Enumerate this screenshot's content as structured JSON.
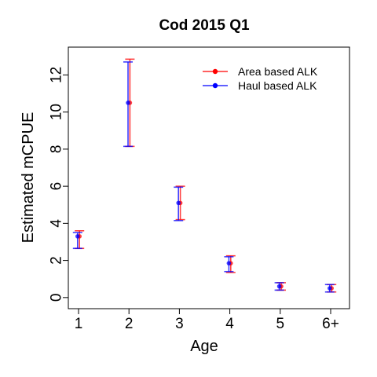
{
  "chart_data": {
    "type": "scatter",
    "title": "Cod 2015 Q1",
    "xlabel": "Age",
    "ylabel": "Estimated mCPUE",
    "categories": [
      "1",
      "2",
      "3",
      "4",
      "5",
      "6+"
    ],
    "ylim": [
      -0.6,
      13.5
    ],
    "yticks": [
      0,
      2,
      4,
      6,
      8,
      10,
      12
    ],
    "grid": false,
    "legend_position": "top-right",
    "series": [
      {
        "name": "Area based ALK",
        "color": "#ff0000",
        "values": [
          3.3,
          10.5,
          5.1,
          1.85,
          0.6,
          0.5
        ],
        "lower": [
          2.65,
          8.15,
          4.2,
          1.35,
          0.4,
          0.3
        ],
        "upper": [
          3.6,
          12.85,
          6.0,
          2.25,
          0.8,
          0.7
        ]
      },
      {
        "name": "Haul based ALK",
        "color": "#0000ff",
        "values": [
          3.3,
          10.5,
          5.1,
          1.85,
          0.6,
          0.5
        ],
        "lower": [
          2.65,
          8.15,
          4.15,
          1.4,
          0.4,
          0.3
        ],
        "upper": [
          3.5,
          12.7,
          5.95,
          2.2,
          0.8,
          0.7
        ]
      }
    ]
  }
}
